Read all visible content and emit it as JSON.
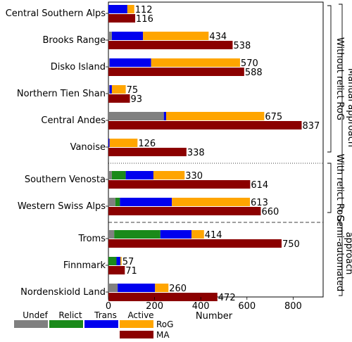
{
  "chart_data": {
    "type": "bar",
    "orientation": "horizontal",
    "xlabel": "Number",
    "xlim": [
      0,
      930
    ],
    "xticks": [
      0,
      200,
      400,
      600,
      800
    ],
    "categories": [
      "Central Southern Alps",
      "Brooks Range",
      "Disko Island",
      "Northern Tien Shan",
      "Central Andes",
      "Vanoise",
      "Southern Venosta",
      "Western Swiss Alps",
      "Troms",
      "Finnmark",
      "Nordenskiold Land"
    ],
    "rog_stack": [
      {
        "name": "Undef",
        "color": "#808080",
        "values": [
          0,
          15,
          5,
          5,
          240,
          0,
          15,
          30,
          25,
          0,
          40
        ]
      },
      {
        "name": "Relict",
        "color": "#1a8a1a",
        "values": [
          0,
          0,
          0,
          0,
          0,
          0,
          60,
          20,
          200,
          35,
          0
        ]
      },
      {
        "name": "Trans",
        "color": "#0000ee",
        "values": [
          82,
          135,
          180,
          10,
          10,
          5,
          120,
          225,
          135,
          17,
          162
        ]
      },
      {
        "name": "Active",
        "color": "#ffa500",
        "values": [
          30,
          284,
          385,
          60,
          425,
          121,
          135,
          338,
          54,
          5,
          58
        ]
      }
    ],
    "rog_totals": [
      112,
      434,
      570,
      75,
      675,
      126,
      330,
      613,
      414,
      57,
      260
    ],
    "ma": {
      "name": "MA",
      "color": "#8b0000",
      "values": [
        116,
        538,
        588,
        93,
        837,
        338,
        614,
        660,
        750,
        71,
        472
      ]
    },
    "rog_label": "RoG",
    "ma_label": "MA",
    "groups": [
      {
        "label": "Without relict RoG",
        "from": 0,
        "to": 5
      },
      {
        "label": "With relict RoG",
        "from": 6,
        "to": 7
      },
      {
        "label": "Manual approach",
        "from": 0,
        "to": 7
      },
      {
        "label": "Semi-automated approach",
        "from": 8,
        "to": 10
      }
    ],
    "separators": [
      {
        "after": 5,
        "style": "dotted"
      },
      {
        "after": 7,
        "style": "dashed"
      }
    ]
  }
}
